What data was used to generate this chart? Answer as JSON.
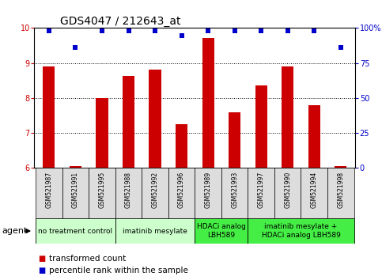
{
  "title": "GDS4047 / 212643_at",
  "samples": [
    "GSM521987",
    "GSM521991",
    "GSM521995",
    "GSM521988",
    "GSM521992",
    "GSM521996",
    "GSM521989",
    "GSM521993",
    "GSM521997",
    "GSM521990",
    "GSM521994",
    "GSM521998"
  ],
  "bar_values": [
    8.9,
    6.05,
    8.0,
    8.62,
    8.8,
    7.25,
    9.72,
    7.6,
    8.35,
    8.9,
    7.8,
    6.05
  ],
  "dot_values": [
    9.92,
    9.45,
    9.92,
    9.92,
    9.92,
    9.78,
    9.92,
    9.92,
    9.92,
    9.92,
    9.92,
    9.45
  ],
  "ylim_left": [
    6,
    10
  ],
  "ylim_right": [
    0,
    100
  ],
  "yticks_left": [
    6,
    7,
    8,
    9,
    10
  ],
  "yticks_right": [
    0,
    25,
    50,
    75,
    100
  ],
  "ytick_labels_right": [
    "0",
    "25",
    "50",
    "75",
    "100%"
  ],
  "bar_color": "#cc0000",
  "dot_color": "#0000cc",
  "bar_bottom": 6.0,
  "bar_width": 0.45,
  "groups": [
    {
      "label": "no treatment control",
      "start": 0,
      "end": 3,
      "color": "#ccffcc"
    },
    {
      "label": "imatinib mesylate",
      "start": 3,
      "end": 6,
      "color": "#ccffcc"
    },
    {
      "label": "HDACi analog\nLBH589",
      "start": 6,
      "end": 8,
      "color": "#44ee44"
    },
    {
      "label": "imatinib mesylate +\nHDACi analog LBH589",
      "start": 8,
      "end": 12,
      "color": "#44ee44"
    }
  ],
  "legend_bar_label": "transformed count",
  "legend_dot_label": "percentile rank within the sample",
  "agent_label": "agent",
  "bar_color_label": "#cc0000",
  "dot_color_label": "#0000cc",
  "title_color": "#000000",
  "bg_plot": "#ffffff",
  "bg_xlabels": "#dddddd",
  "fontsize_title": 10,
  "fontsize_ticks": 7,
  "fontsize_sample": 5.5,
  "fontsize_group": 6.5,
  "fontsize_legend": 7.5,
  "fontsize_agent": 8,
  "grid_yticks": [
    7,
    8,
    9
  ]
}
